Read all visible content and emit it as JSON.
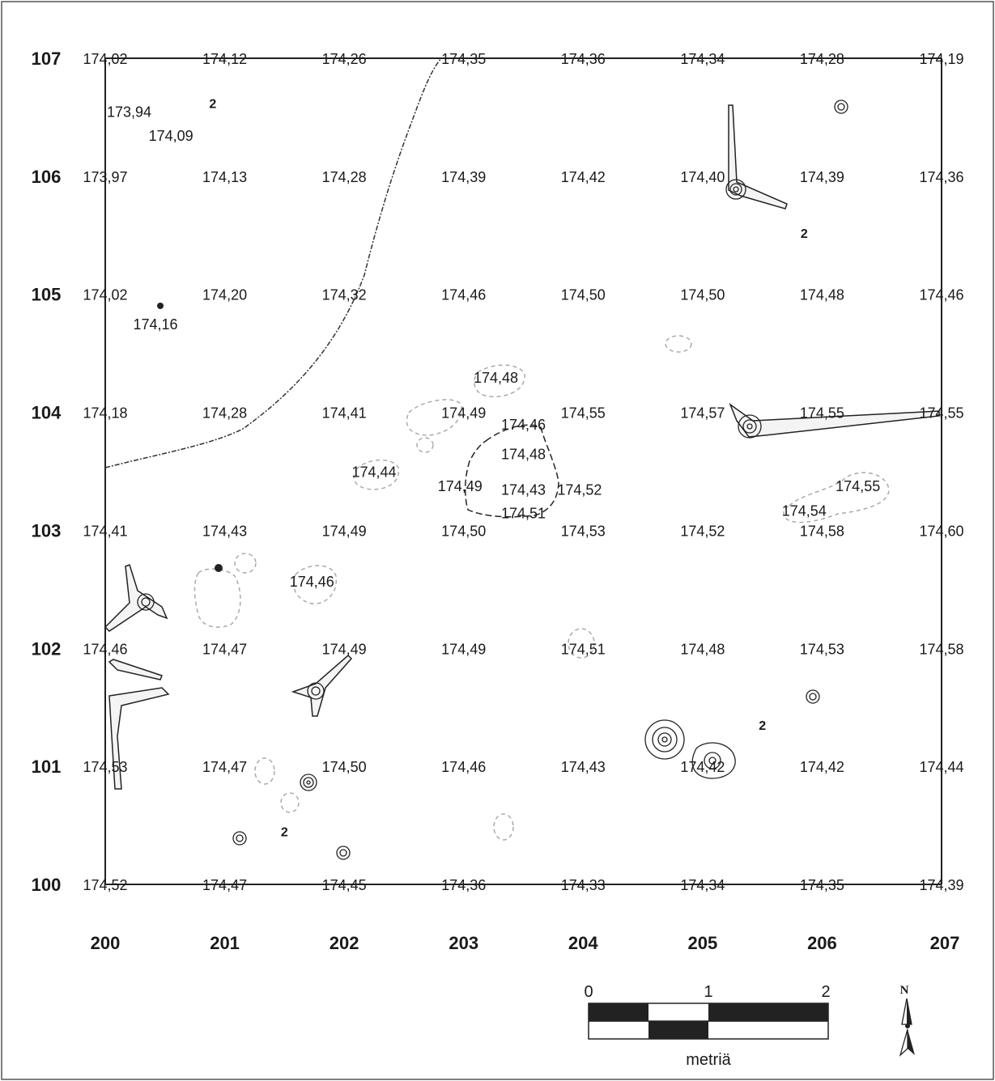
{
  "map": {
    "row_labels": [
      "100",
      "101",
      "102",
      "103",
      "104",
      "105",
      "106",
      "107"
    ],
    "col_labels": [
      "200",
      "201",
      "202",
      "203",
      "204",
      "205",
      "206",
      "207"
    ],
    "elevations": [
      {
        "e": 200,
        "n": 107,
        "v": "174,02"
      },
      {
        "e": 201,
        "n": 107,
        "v": "174,12"
      },
      {
        "e": 202,
        "n": 107,
        "v": "174,26"
      },
      {
        "e": 203,
        "n": 107,
        "v": "174,35"
      },
      {
        "e": 204,
        "n": 107,
        "v": "174,36"
      },
      {
        "e": 205,
        "n": 107,
        "v": "174,34"
      },
      {
        "e": 206,
        "n": 107,
        "v": "174,28"
      },
      {
        "e": 207,
        "n": 107,
        "v": "174,19"
      },
      {
        "e": 200.2,
        "n": 106.55,
        "v": "173,94"
      },
      {
        "e": 200.55,
        "n": 106.35,
        "v": "174,09"
      },
      {
        "e": 200,
        "n": 106,
        "v": "173,97"
      },
      {
        "e": 201,
        "n": 106,
        "v": "174,13"
      },
      {
        "e": 202,
        "n": 106,
        "v": "174,28"
      },
      {
        "e": 203,
        "n": 106,
        "v": "174,39"
      },
      {
        "e": 204,
        "n": 106,
        "v": "174,42"
      },
      {
        "e": 205,
        "n": 106,
        "v": "174,40"
      },
      {
        "e": 206,
        "n": 106,
        "v": "174,39"
      },
      {
        "e": 207,
        "n": 106,
        "v": "174,36"
      },
      {
        "e": 200,
        "n": 105,
        "v": "174,02"
      },
      {
        "e": 201,
        "n": 105,
        "v": "174,20"
      },
      {
        "e": 202,
        "n": 105,
        "v": "174,32"
      },
      {
        "e": 203,
        "n": 105,
        "v": "174,46"
      },
      {
        "e": 204,
        "n": 105,
        "v": "174,50"
      },
      {
        "e": 205,
        "n": 105,
        "v": "174,50"
      },
      {
        "e": 206,
        "n": 105,
        "v": "174,48"
      },
      {
        "e": 207,
        "n": 105,
        "v": "174,46"
      },
      {
        "e": 200.42,
        "n": 104.75,
        "v": "174,16"
      },
      {
        "e": 203.27,
        "n": 104.3,
        "v": "174,48"
      },
      {
        "e": 200,
        "n": 104,
        "v": "174,18"
      },
      {
        "e": 201,
        "n": 104,
        "v": "174,28"
      },
      {
        "e": 202,
        "n": 104,
        "v": "174,41"
      },
      {
        "e": 203,
        "n": 104,
        "v": "174,49"
      },
      {
        "e": 204,
        "n": 104,
        "v": "174,55"
      },
      {
        "e": 205,
        "n": 104,
        "v": "174,57"
      },
      {
        "e": 206,
        "n": 104,
        "v": "174,55"
      },
      {
        "e": 207,
        "n": 104,
        "v": "174,55"
      },
      {
        "e": 203.5,
        "n": 103.9,
        "v": "174,46"
      },
      {
        "e": 203.5,
        "n": 103.65,
        "v": "174,48"
      },
      {
        "e": 202.25,
        "n": 103.5,
        "v": "174,44"
      },
      {
        "e": 202.97,
        "n": 103.38,
        "v": "174,49"
      },
      {
        "e": 203.5,
        "n": 103.35,
        "v": "174,43"
      },
      {
        "e": 203.97,
        "n": 103.35,
        "v": "174,52"
      },
      {
        "e": 206.3,
        "n": 103.38,
        "v": "174,55"
      },
      {
        "e": 205.85,
        "n": 103.17,
        "v": "174,54"
      },
      {
        "e": 203.5,
        "n": 103.15,
        "v": "174,51"
      },
      {
        "e": 200,
        "n": 103,
        "v": "174,41"
      },
      {
        "e": 201,
        "n": 103,
        "v": "174,43"
      },
      {
        "e": 202,
        "n": 103,
        "v": "174,49"
      },
      {
        "e": 203,
        "n": 103,
        "v": "174,50"
      },
      {
        "e": 204,
        "n": 103,
        "v": "174,53"
      },
      {
        "e": 205,
        "n": 103,
        "v": "174,52"
      },
      {
        "e": 206,
        "n": 103,
        "v": "174,58"
      },
      {
        "e": 207,
        "n": 103,
        "v": "174,60"
      },
      {
        "e": 201.73,
        "n": 102.57,
        "v": "174,46"
      },
      {
        "e": 200,
        "n": 102,
        "v": "174,46"
      },
      {
        "e": 201,
        "n": 102,
        "v": "174,47"
      },
      {
        "e": 202,
        "n": 102,
        "v": "174,49"
      },
      {
        "e": 203,
        "n": 102,
        "v": "174,49"
      },
      {
        "e": 204,
        "n": 102,
        "v": "174,51"
      },
      {
        "e": 205,
        "n": 102,
        "v": "174,48"
      },
      {
        "e": 206,
        "n": 102,
        "v": "174,53"
      },
      {
        "e": 207,
        "n": 102,
        "v": "174,58"
      },
      {
        "e": 200,
        "n": 101,
        "v": "174,53"
      },
      {
        "e": 201,
        "n": 101,
        "v": "174,47"
      },
      {
        "e": 202,
        "n": 101,
        "v": "174,50"
      },
      {
        "e": 203,
        "n": 101,
        "v": "174,46"
      },
      {
        "e": 204,
        "n": 101,
        "v": "174,43"
      },
      {
        "e": 205,
        "n": 101,
        "v": "174,42"
      },
      {
        "e": 206,
        "n": 101,
        "v": "174,42"
      },
      {
        "e": 207,
        "n": 101,
        "v": "174,44"
      },
      {
        "e": 200,
        "n": 100,
        "v": "174,52"
      },
      {
        "e": 201,
        "n": 100,
        "v": "174,47"
      },
      {
        "e": 202,
        "n": 100,
        "v": "174,45"
      },
      {
        "e": 203,
        "n": 100,
        "v": "174,36"
      },
      {
        "e": 204,
        "n": 100,
        "v": "174,33"
      },
      {
        "e": 205,
        "n": 100,
        "v": "174,34"
      },
      {
        "e": 206,
        "n": 100,
        "v": "174,35"
      },
      {
        "e": 207,
        "n": 100,
        "v": "174,39"
      }
    ],
    "feature_labels": [
      {
        "e": 200.9,
        "n": 106.62,
        "v": "2"
      },
      {
        "e": 205.85,
        "n": 105.52,
        "v": "2"
      },
      {
        "e": 205.5,
        "n": 101.35,
        "v": "2"
      },
      {
        "e": 201.5,
        "n": 100.45,
        "v": "2"
      }
    ],
    "scale_bar": {
      "tick_labels": [
        "0",
        "1",
        "2"
      ],
      "unit": "metriä"
    },
    "north_label": "N"
  }
}
